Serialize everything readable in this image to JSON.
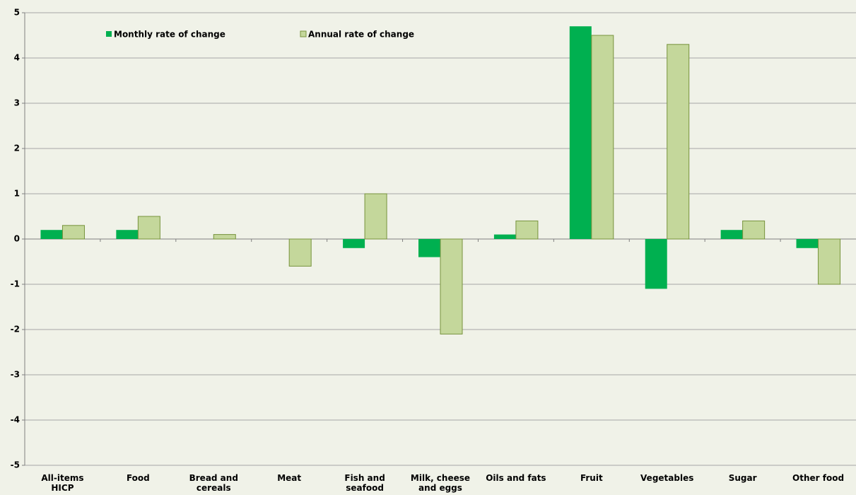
{
  "chart_data": {
    "type": "bar",
    "categories": [
      "All-items HICP",
      "Food",
      "Bread and cereals",
      "Meat",
      "Fish and seafood",
      "Milk, cheese and eggs",
      "Oils and fats",
      "Fruit",
      "Vegetables",
      "Sugar",
      "Other food"
    ],
    "series": [
      {
        "name": "Monthly rate of change",
        "color": "#00b050",
        "values": [
          0.2,
          0.2,
          0,
          0,
          -0.2,
          -0.4,
          0.1,
          4.7,
          -1.1,
          0.2,
          -0.2
        ]
      },
      {
        "name": "Annual rate of change",
        "color": "#c4d79b",
        "values": [
          0.3,
          0.5,
          0.1,
          -0.6,
          1.0,
          -2.1,
          0.4,
          4.5,
          4.3,
          0.4,
          -1.0
        ]
      }
    ],
    "ylim": [
      -5,
      5
    ],
    "yticks": [
      -5,
      -4,
      -3,
      -2,
      -1,
      0,
      1,
      2,
      3,
      4,
      5
    ],
    "grid": true,
    "legend": "top-left"
  }
}
